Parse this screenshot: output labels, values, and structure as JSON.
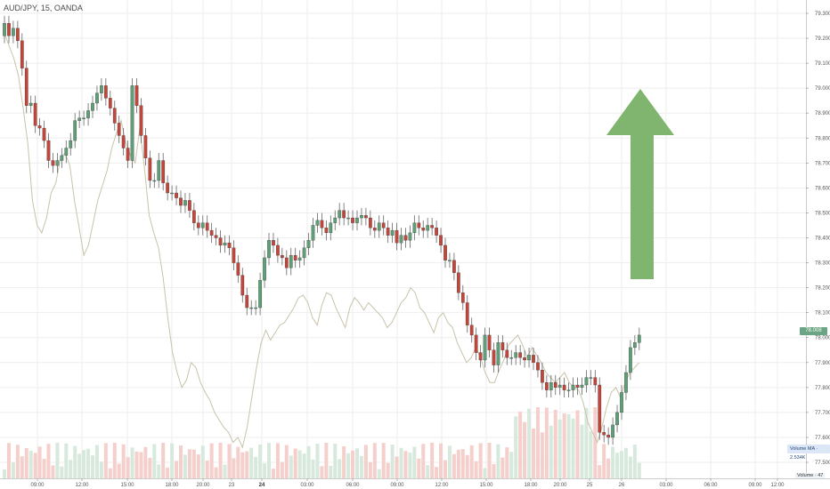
{
  "header": {
    "title": "AUD/JPY, 15, OANDA"
  },
  "badges": {
    "last_price": "78.008",
    "volume_ma": "Volume MA · 2.534K",
    "volume": "Volume · 47"
  },
  "colors": {
    "up": "#5e9f77",
    "down": "#c4453a",
    "wick": "#666666",
    "overlay_line": "#c8c3a8",
    "arrow": "#7fb56e",
    "vol_up": "#d7e9dc",
    "vol_down": "#f4cfcb",
    "grid": "#eeeeee"
  },
  "chart_data": {
    "type": "candlestick",
    "symbol": "AUD/JPY",
    "interval": "15",
    "source": "OANDA",
    "y_axis": {
      "ticks": [
        77.5,
        77.6,
        77.7,
        77.8,
        77.9,
        78.0,
        78.1,
        78.2,
        78.3,
        78.4,
        78.5,
        78.6,
        78.7,
        78.8,
        78.9,
        79.0,
        79.1,
        79.2,
        79.3
      ],
      "tick_labels": [
        "77.500",
        "77.600",
        "77.700",
        "77.800",
        "77.900",
        "78.000",
        "78.100",
        "78.200",
        "78.300",
        "78.400",
        "78.500",
        "78.600",
        "78.700",
        "78.800",
        "78.900",
        "79.000",
        "79.100",
        "79.200",
        "79.300"
      ],
      "range": [
        77.5,
        79.3
      ]
    },
    "x_axis": {
      "tick_labels": [
        "09:00",
        "12:00",
        "15:00",
        "18:00",
        "20:00",
        "23",
        "24",
        "03:00",
        "06:00",
        "09:00",
        "12:00",
        "15:00",
        "18:00",
        "20:00",
        "25",
        "26",
        "03:00",
        "06:00",
        "09:00",
        "12:00"
      ],
      "bold_labels": [
        "24"
      ]
    },
    "close": [
      79.26,
      79.21,
      79.24,
      79.19,
      79.08,
      78.93,
      78.94,
      78.85,
      78.84,
      78.79,
      78.71,
      78.69,
      78.71,
      78.73,
      78.76,
      78.79,
      78.87,
      78.88,
      78.88,
      78.91,
      78.94,
      78.98,
      79.01,
      78.96,
      78.92,
      78.86,
      78.81,
      78.76,
      78.71,
      79.01,
      78.93,
      78.81,
      78.72,
      78.63,
      78.63,
      78.71,
      78.62,
      78.58,
      78.58,
      78.56,
      78.53,
      78.55,
      78.51,
      78.46,
      78.44,
      78.46,
      78.43,
      78.41,
      78.4,
      78.37,
      78.38,
      78.36,
      78.3,
      78.25,
      78.17,
      78.12,
      78.12,
      78.12,
      78.23,
      78.32,
      78.39,
      78.37,
      78.33,
      78.32,
      78.28,
      78.33,
      78.31,
      78.32,
      78.36,
      78.39,
      78.45,
      78.47,
      78.44,
      78.42,
      78.46,
      78.48,
      78.51,
      78.48,
      78.48,
      78.46,
      78.48,
      78.49,
      78.48,
      78.44,
      78.43,
      78.46,
      78.44,
      78.41,
      78.43,
      78.38,
      78.41,
      78.39,
      78.42,
      78.46,
      78.44,
      78.43,
      78.45,
      78.44,
      78.41,
      78.37,
      78.31,
      78.31,
      78.26,
      78.18,
      78.14,
      78.05,
      78.01,
      77.94,
      77.91,
      78.01,
      77.95,
      77.89,
      77.98,
      77.95,
      77.92,
      77.92,
      77.94,
      77.92,
      77.91,
      77.93,
      77.9,
      77.87,
      77.82,
      77.79,
      77.82,
      77.8,
      77.81,
      77.79,
      77.79,
      77.81,
      77.8,
      77.81,
      77.84,
      77.84,
      77.81,
      77.62,
      77.61,
      77.6,
      77.65,
      77.7,
      77.78,
      77.86,
      77.96,
      77.98,
      78.01
    ],
    "open": [
      79.21,
      79.26,
      79.21,
      79.24,
      79.19,
      79.08,
      78.93,
      78.94,
      78.85,
      78.84,
      78.79,
      78.71,
      78.69,
      78.71,
      78.73,
      78.76,
      78.79,
      78.87,
      78.88,
      78.88,
      78.91,
      78.94,
      78.98,
      79.01,
      78.96,
      78.92,
      78.86,
      78.81,
      78.76,
      78.71,
      79.01,
      78.93,
      78.81,
      78.72,
      78.63,
      78.63,
      78.71,
      78.62,
      78.58,
      78.58,
      78.56,
      78.53,
      78.55,
      78.51,
      78.46,
      78.44,
      78.46,
      78.43,
      78.41,
      78.4,
      78.37,
      78.38,
      78.36,
      78.3,
      78.25,
      78.17,
      78.12,
      78.12,
      78.12,
      78.23,
      78.32,
      78.39,
      78.37,
      78.33,
      78.32,
      78.28,
      78.33,
      78.31,
      78.32,
      78.36,
      78.39,
      78.45,
      78.47,
      78.44,
      78.42,
      78.46,
      78.48,
      78.51,
      78.48,
      78.48,
      78.46,
      78.48,
      78.49,
      78.48,
      78.44,
      78.43,
      78.46,
      78.44,
      78.41,
      78.43,
      78.38,
      78.41,
      78.39,
      78.42,
      78.46,
      78.44,
      78.43,
      78.45,
      78.44,
      78.41,
      78.37,
      78.31,
      78.31,
      78.26,
      78.18,
      78.14,
      78.05,
      78.01,
      77.94,
      77.91,
      78.01,
      77.95,
      77.89,
      77.98,
      77.95,
      77.92,
      77.92,
      77.94,
      77.92,
      77.91,
      77.93,
      77.9,
      77.87,
      77.82,
      77.79,
      77.82,
      77.8,
      77.81,
      77.79,
      77.79,
      77.81,
      77.8,
      77.81,
      77.84,
      77.84,
      77.81,
      77.62,
      77.61,
      77.6,
      77.65,
      77.7,
      77.78,
      77.86,
      77.96,
      77.98
    ],
    "overlay_series_unlabeled": [
      79.22,
      79.17,
      79.12,
      79.05,
      78.92,
      78.78,
      78.55,
      78.45,
      78.42,
      78.48,
      78.58,
      78.62,
      78.72,
      78.74,
      78.69,
      78.55,
      78.44,
      78.33,
      78.37,
      78.46,
      78.55,
      78.61,
      78.67,
      78.76,
      78.82,
      78.87,
      78.78,
      78.73,
      78.7,
      78.84,
      78.68,
      78.49,
      78.42,
      78.36,
      78.24,
      78.08,
      77.94,
      77.86,
      77.8,
      77.83,
      77.9,
      77.88,
      77.82,
      77.78,
      77.75,
      77.7,
      77.67,
      77.64,
      77.62,
      77.58,
      77.6,
      77.56,
      77.64,
      77.76,
      77.88,
      77.98,
      78.03,
      77.99,
      78.02,
      78.05,
      78.06,
      78.09,
      78.12,
      78.16,
      78.17,
      78.14,
      78.08,
      78.05,
      78.13,
      78.18,
      78.17,
      78.12,
      78.08,
      78.04,
      78.12,
      78.16,
      78.14,
      78.11,
      78.14,
      78.12,
      78.1,
      78.08,
      78.04,
      78.06,
      78.1,
      78.14,
      78.16,
      78.2,
      78.18,
      78.12,
      78.1,
      78.06,
      78.02,
      78.08,
      78.1,
      78.06,
      78.04,
      77.98,
      77.94,
      77.9,
      77.92,
      77.96,
      77.92,
      77.86,
      77.82,
      77.82,
      77.87,
      77.91,
      77.97,
      77.99,
      78.01,
      77.97,
      77.92,
      77.96,
      77.93,
      77.9,
      77.86,
      77.84,
      77.82,
      77.84,
      77.86,
      77.82,
      77.8,
      77.79,
      77.74,
      77.66,
      77.62,
      77.58,
      77.64,
      77.72,
      77.78,
      77.8,
      77.76,
      77.82,
      77.86,
      77.88,
      77.9
    ]
  }
}
